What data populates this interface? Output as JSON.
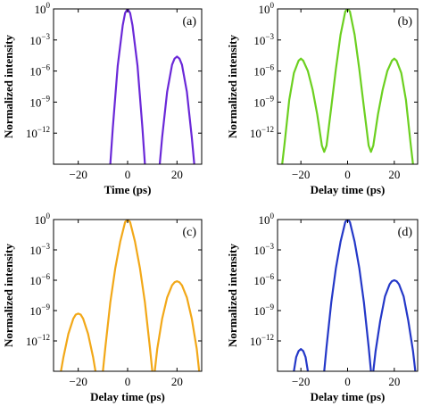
{
  "chart_data": [
    {
      "id": "a",
      "type": "line",
      "panel_label": "(a)",
      "xlabel": "Time (ps)",
      "ylabel": "Normalized intensity",
      "xlim": [
        -30,
        30
      ],
      "ylim_log10": [
        -15,
        0
      ],
      "xticks": [
        -20,
        0,
        20
      ],
      "yticks_exp": [
        0,
        -3,
        -6,
        -9,
        -12
      ],
      "ytick_base": "10",
      "color": "#6a28d8",
      "series": [
        {
          "x": [
            -7,
            -6,
            -4,
            -2,
            -1,
            0,
            1,
            2,
            4,
            6,
            7
          ],
          "y_log10": [
            -15,
            -11.5,
            -5.5,
            -1.6,
            -0.4,
            0,
            -0.4,
            -1.6,
            -5.5,
            -11.5,
            -15
          ]
        },
        {
          "x": [
            13,
            14,
            16,
            18,
            19,
            20,
            21,
            22,
            24,
            26,
            27
          ],
          "y_log10": [
            -15,
            -12.4,
            -8,
            -5.4,
            -4.8,
            -4.6,
            -4.8,
            -5.4,
            -8,
            -12.4,
            -15
          ]
        }
      ]
    },
    {
      "id": "b",
      "type": "line",
      "panel_label": "(b)",
      "xlabel": "Delay time (ps)",
      "ylabel": "Normalized intensity",
      "xlim": [
        -30,
        30
      ],
      "ylim_log10": [
        -15,
        0
      ],
      "xticks": [
        -20,
        0,
        20
      ],
      "yticks_exp": [
        0,
        -3,
        -6,
        -9,
        -12
      ],
      "ytick_base": "10",
      "color": "#6cd020",
      "series": [
        {
          "x": [
            -28,
            -27,
            -25,
            -23,
            -21,
            -20,
            -19,
            -17,
            -15,
            -13,
            -11,
            -10,
            -9,
            -7,
            -5,
            -3,
            -1,
            0,
            1,
            3,
            5,
            7,
            9,
            10,
            11,
            13,
            15,
            17,
            19,
            20,
            21,
            23,
            25,
            27,
            28
          ],
          "y_log10": [
            -15,
            -13,
            -8.8,
            -6.2,
            -5.0,
            -4.8,
            -5.0,
            -6.0,
            -7.8,
            -10.2,
            -13.2,
            -13.8,
            -13.2,
            -9.5,
            -5.8,
            -2.5,
            -0.25,
            0,
            -0.25,
            -2.5,
            -5.8,
            -9.5,
            -13.2,
            -13.8,
            -13.2,
            -10.2,
            -7.8,
            -6.0,
            -5.0,
            -4.8,
            -5.0,
            -6.2,
            -8.8,
            -13,
            -15
          ]
        }
      ]
    },
    {
      "id": "c",
      "type": "line",
      "panel_label": "(c)",
      "xlabel": "Delay time (ps)",
      "ylabel": "Normalized intensity",
      "xlim": [
        -30,
        30
      ],
      "ylim_log10": [
        -15,
        0
      ],
      "xticks": [
        -20,
        0,
        20
      ],
      "yticks_exp": [
        0,
        -3,
        -6,
        -9,
        -12
      ],
      "ytick_base": "10",
      "color": "#f2a818",
      "series": [
        {
          "x": [
            -27,
            -26,
            -24,
            -22,
            -21,
            -20,
            -19,
            -18,
            -16,
            -14,
            -13
          ],
          "y_log10": [
            -15,
            -13.6,
            -11.3,
            -9.8,
            -9.4,
            -9.3,
            -9.4,
            -9.8,
            -11.3,
            -13.6,
            -15
          ]
        },
        {
          "x": [
            -10,
            -9,
            -7,
            -5,
            -3,
            -1,
            0,
            1,
            3,
            5,
            7,
            9,
            10
          ],
          "y_log10": [
            -15,
            -12.6,
            -8.2,
            -4.8,
            -2.2,
            -0.25,
            0,
            -0.25,
            -2.2,
            -4.8,
            -8.2,
            -12.6,
            -15
          ]
        },
        {
          "x": [
            11,
            12,
            14,
            16,
            18,
            19,
            20,
            21,
            22,
            24,
            26,
            28,
            29
          ],
          "y_log10": [
            -15,
            -12.8,
            -9.8,
            -7.7,
            -6.5,
            -6.2,
            -6.1,
            -6.2,
            -6.5,
            -7.7,
            -9.8,
            -12.8,
            -15
          ]
        }
      ]
    },
    {
      "id": "d",
      "type": "line",
      "panel_label": "(d)",
      "xlabel": "Delay time (ps)",
      "ylabel": "Normalized intensity",
      "xlim": [
        -30,
        30
      ],
      "ylim_log10": [
        -15,
        0
      ],
      "xticks": [
        -20,
        0,
        20
      ],
      "yticks_exp": [
        0,
        -3,
        -6,
        -9,
        -12
      ],
      "ytick_base": "10",
      "color": "#2438c8",
      "series": [
        {
          "x": [
            -23,
            -22,
            -21,
            -20,
            -19,
            -18,
            -17
          ],
          "y_log10": [
            -15,
            -13.6,
            -13.0,
            -12.8,
            -13.0,
            -13.6,
            -15
          ]
        },
        {
          "x": [
            -10,
            -9,
            -7,
            -5,
            -3,
            -1,
            0,
            1,
            3,
            5,
            7,
            9,
            10
          ],
          "y_log10": [
            -15,
            -12.6,
            -8.2,
            -4.8,
            -2.2,
            -0.25,
            0,
            -0.25,
            -2.2,
            -4.8,
            -8.2,
            -12.6,
            -15
          ]
        },
        {
          "x": [
            11,
            12,
            14,
            16,
            18,
            19,
            20,
            21,
            22,
            24,
            26,
            28,
            29
          ],
          "y_log10": [
            -15,
            -13.0,
            -10.0,
            -7.6,
            -6.4,
            -6.1,
            -6.0,
            -6.1,
            -6.4,
            -7.6,
            -10.0,
            -13.0,
            -15
          ]
        }
      ]
    }
  ]
}
